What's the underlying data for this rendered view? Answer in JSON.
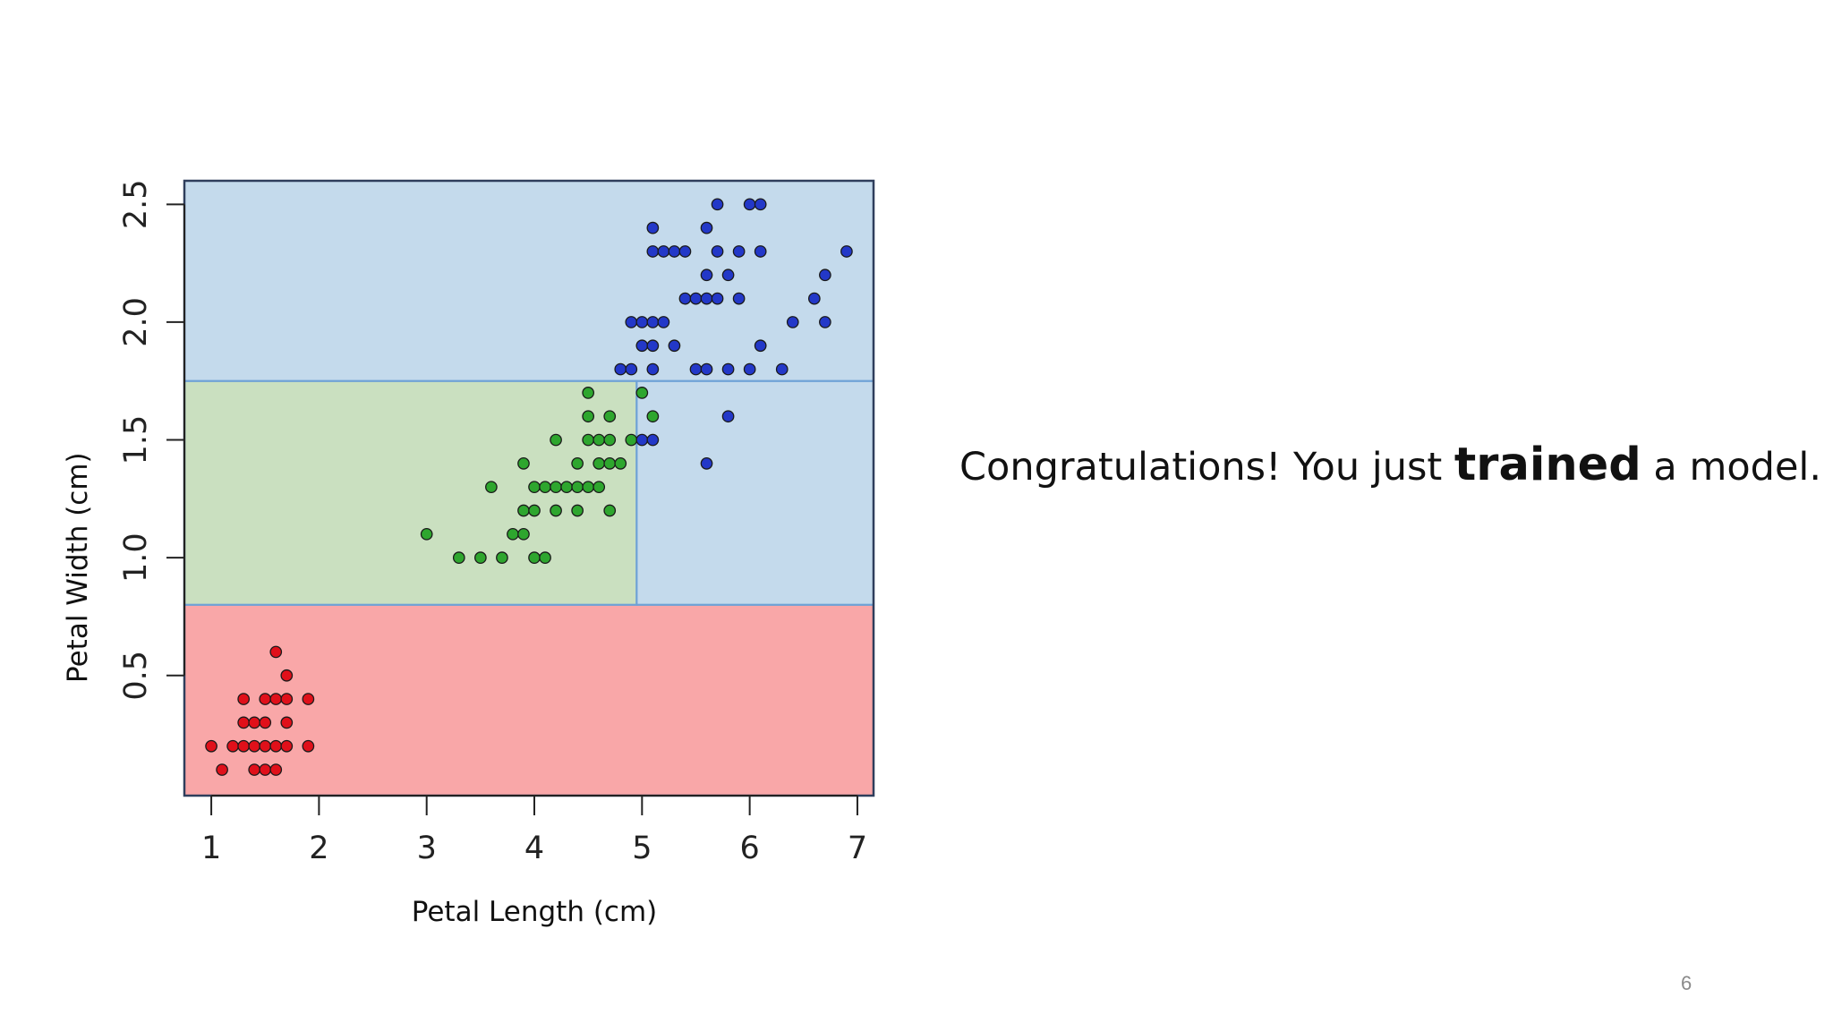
{
  "chart_data": {
    "type": "scatter",
    "xlabel": "Petal Length (cm)",
    "ylabel": "Petal Width (cm)",
    "xlim": [
      0.75,
      7.15
    ],
    "ylim": [
      -0.01,
      2.6
    ],
    "x_ticks": [
      "1",
      "2",
      "3",
      "4",
      "5",
      "6",
      "7"
    ],
    "y_ticks": [
      "0.5",
      "1.0",
      "1.5",
      "2.0",
      "2.5"
    ],
    "grid": false,
    "legend": "none",
    "decision_regions": [
      {
        "x": [
          0.75,
          7.15
        ],
        "y": [
          -0.01,
          0.8
        ],
        "color": "#f9a7a8"
      },
      {
        "x": [
          0.75,
          4.95
        ],
        "y": [
          0.8,
          1.75
        ],
        "color": "#cae0c0"
      },
      {
        "x": [
          4.95,
          7.15
        ],
        "y": [
          0.8,
          1.75
        ],
        "color": "#c4daec"
      },
      {
        "x": [
          0.75,
          7.15
        ],
        "y": [
          1.75,
          2.6
        ],
        "color": "#c4daec"
      }
    ],
    "boundary_color": "#6fa2d6",
    "series": [
      {
        "color": "#e0101a",
        "points": [
          [
            1.0,
            0.2
          ],
          [
            1.1,
            0.1
          ],
          [
            1.2,
            0.2
          ],
          [
            1.3,
            0.2
          ],
          [
            1.3,
            0.3
          ],
          [
            1.3,
            0.4
          ],
          [
            1.4,
            0.2
          ],
          [
            1.4,
            0.3
          ],
          [
            1.4,
            0.1
          ],
          [
            1.5,
            0.2
          ],
          [
            1.5,
            0.3
          ],
          [
            1.5,
            0.4
          ],
          [
            1.5,
            0.1
          ],
          [
            1.6,
            0.2
          ],
          [
            1.6,
            0.4
          ],
          [
            1.6,
            0.6
          ],
          [
            1.6,
            0.1
          ],
          [
            1.7,
            0.2
          ],
          [
            1.7,
            0.3
          ],
          [
            1.7,
            0.4
          ],
          [
            1.7,
            0.5
          ],
          [
            1.9,
            0.2
          ],
          [
            1.9,
            0.4
          ]
        ]
      },
      {
        "color": "#2ea62e",
        "points": [
          [
            3.0,
            1.1
          ],
          [
            3.3,
            1.0
          ],
          [
            3.5,
            1.0
          ],
          [
            3.6,
            1.3
          ],
          [
            3.7,
            1.0
          ],
          [
            3.8,
            1.1
          ],
          [
            3.9,
            1.1
          ],
          [
            3.9,
            1.2
          ],
          [
            3.9,
            1.4
          ],
          [
            4.0,
            1.0
          ],
          [
            4.0,
            1.2
          ],
          [
            4.0,
            1.3
          ],
          [
            4.1,
            1.0
          ],
          [
            4.1,
            1.3
          ],
          [
            4.2,
            1.2
          ],
          [
            4.2,
            1.3
          ],
          [
            4.2,
            1.5
          ],
          [
            4.3,
            1.3
          ],
          [
            4.4,
            1.2
          ],
          [
            4.4,
            1.3
          ],
          [
            4.4,
            1.4
          ],
          [
            4.5,
            1.3
          ],
          [
            4.5,
            1.5
          ],
          [
            4.5,
            1.6
          ],
          [
            4.5,
            1.7
          ],
          [
            4.6,
            1.3
          ],
          [
            4.6,
            1.4
          ],
          [
            4.6,
            1.5
          ],
          [
            4.7,
            1.2
          ],
          [
            4.7,
            1.4
          ],
          [
            4.7,
            1.5
          ],
          [
            4.7,
            1.6
          ],
          [
            4.8,
            1.4
          ],
          [
            4.9,
            1.5
          ],
          [
            5.0,
            1.7
          ],
          [
            5.1,
            1.6
          ]
        ]
      },
      {
        "color": "#2338c8",
        "points": [
          [
            4.8,
            1.8
          ],
          [
            4.9,
            1.8
          ],
          [
            4.9,
            2.0
          ],
          [
            5.0,
            1.9
          ],
          [
            5.0,
            2.0
          ],
          [
            5.0,
            1.5
          ],
          [
            5.1,
            1.8
          ],
          [
            5.1,
            1.9
          ],
          [
            5.1,
            2.0
          ],
          [
            5.1,
            2.3
          ],
          [
            5.1,
            2.4
          ],
          [
            5.1,
            1.5
          ],
          [
            5.2,
            2.0
          ],
          [
            5.2,
            2.3
          ],
          [
            5.3,
            1.9
          ],
          [
            5.3,
            2.3
          ],
          [
            5.4,
            2.1
          ],
          [
            5.4,
            2.3
          ],
          [
            5.5,
            1.8
          ],
          [
            5.5,
            2.1
          ],
          [
            5.6,
            1.8
          ],
          [
            5.6,
            2.1
          ],
          [
            5.6,
            2.2
          ],
          [
            5.6,
            2.4
          ],
          [
            5.6,
            1.4
          ],
          [
            5.7,
            2.1
          ],
          [
            5.7,
            2.3
          ],
          [
            5.7,
            2.5
          ],
          [
            5.8,
            1.6
          ],
          [
            5.8,
            1.8
          ],
          [
            5.8,
            2.2
          ],
          [
            5.9,
            2.1
          ],
          [
            5.9,
            2.3
          ],
          [
            6.0,
            1.8
          ],
          [
            6.0,
            2.5
          ],
          [
            6.1,
            1.9
          ],
          [
            6.1,
            2.3
          ],
          [
            6.1,
            2.5
          ],
          [
            6.3,
            1.8
          ],
          [
            6.4,
            2.0
          ],
          [
            6.6,
            2.1
          ],
          [
            6.7,
            2.0
          ],
          [
            6.7,
            2.2
          ],
          [
            6.9,
            2.3
          ]
        ]
      }
    ]
  },
  "caption": {
    "before": "Congratulations!  You just ",
    "emphasis": "trained",
    "after": " a model."
  },
  "slide_number": "6"
}
